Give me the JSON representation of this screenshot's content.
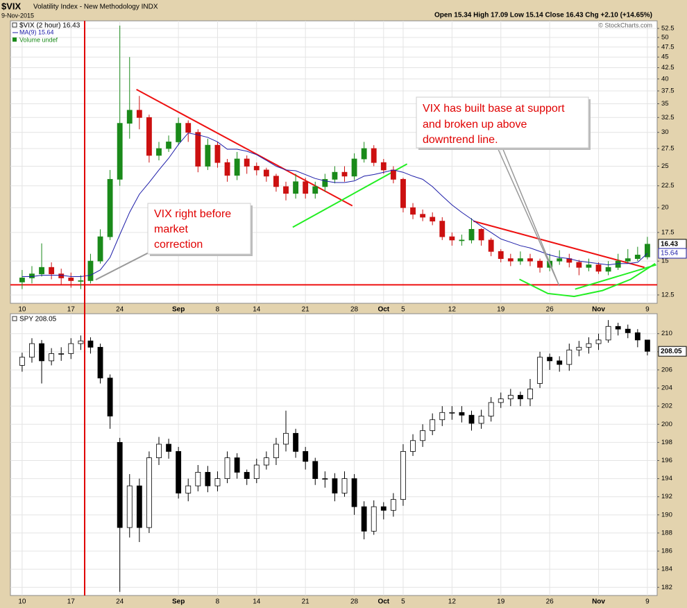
{
  "chart_data": [
    {
      "type": "candlestick",
      "title": "$VIX",
      "subtitle": "Volatility Index - New Methodology INDX",
      "date": "9-Nov-2015",
      "info": "Open 15.34 High 17.09 Low 15.14 Close 16.43 Chg +2.10 (+14.65%)",
      "credit": "© StockCharts.com",
      "log": true,
      "grid": true,
      "xlim": [
        -1.2,
        65
      ],
      "ylim": [
        11.95,
        54.7
      ],
      "xticks": [
        {
          "value": 0,
          "label": "10"
        },
        {
          "value": 5,
          "label": "17"
        },
        {
          "value": 10,
          "label": "24"
        },
        {
          "value": 16,
          "label": "Sep"
        },
        {
          "value": 20,
          "label": "8"
        },
        {
          "value": 24,
          "label": "14"
        },
        {
          "value": 29,
          "label": "21"
        },
        {
          "value": 34,
          "label": "28"
        },
        {
          "value": 37,
          "label": "Oct"
        },
        {
          "value": 39,
          "label": "5"
        },
        {
          "value": 44,
          "label": "12"
        },
        {
          "value": 49,
          "label": "19"
        },
        {
          "value": 54,
          "label": "26"
        },
        {
          "value": 59,
          "label": "Nov"
        },
        {
          "value": 64,
          "label": "9"
        }
      ],
      "yticks": [
        12.5,
        15.0,
        17.5,
        20.0,
        22.5,
        25.0,
        27.5,
        30.0,
        32.5,
        35.0,
        37.5,
        40.0,
        42.5,
        45.0,
        47.5,
        50.0,
        52.5
      ],
      "x": [
        0,
        1,
        2,
        3,
        4,
        5,
        6,
        7,
        8,
        9,
        10,
        11,
        12,
        13,
        14,
        15,
        16,
        17,
        18,
        19,
        20,
        21,
        22,
        23,
        24,
        25,
        26,
        27,
        28,
        29,
        30,
        31,
        32,
        33,
        34,
        35,
        36,
        37,
        38,
        39,
        40,
        41,
        42,
        43,
        44,
        45,
        46,
        47,
        48,
        49,
        50,
        51,
        52,
        53,
        54,
        55,
        56,
        57,
        58,
        59,
        60,
        61,
        62,
        63,
        64
      ],
      "series": [
        {
          "name": "$VIX (2 hour) 16.43",
          "up_color": "#1a8a1a",
          "down_color": "#cc1010",
          "open": [
            13.4,
            13.7,
            14.0,
            14.5,
            14.0,
            13.7,
            13.5,
            13.5,
            15.0,
            17.1,
            23.3,
            31.5,
            33.8,
            32.5,
            26.5,
            27.5,
            28.5,
            31.5,
            30.0,
            25.0,
            28.0,
            25.5,
            23.8,
            26.0,
            25.0,
            24.5,
            23.7,
            22.4,
            21.6,
            23.0,
            21.6,
            22.4,
            23.3,
            24.2,
            23.7,
            26.0,
            27.5,
            25.5,
            24.5,
            23.3,
            20.0,
            19.3,
            19.0,
            18.6,
            17.1,
            16.8,
            16.8,
            17.8,
            16.8,
            15.8,
            15.2,
            15.0,
            15.2,
            15.0,
            14.5,
            15.0,
            15.2,
            14.9,
            14.5,
            14.7,
            14.2,
            14.5,
            15.0,
            15.2,
            15.34
          ],
          "high": [
            14.3,
            14.6,
            16.5,
            14.9,
            14.4,
            14.1,
            13.9,
            15.6,
            17.8,
            24.5,
            53.3,
            45.0,
            36.5,
            33.0,
            28.5,
            29.5,
            32.5,
            32.0,
            30.5,
            29.0,
            28.5,
            26.0,
            27.0,
            26.5,
            25.5,
            24.8,
            24.0,
            23.0,
            24.0,
            23.5,
            23.0,
            24.0,
            25.0,
            25.0,
            26.8,
            28.5,
            28.0,
            26.0,
            25.0,
            23.5,
            20.5,
            19.8,
            19.5,
            19.0,
            17.5,
            17.3,
            18.9,
            17.9,
            17.0,
            16.0,
            15.6,
            15.8,
            15.6,
            15.2,
            15.6,
            15.9,
            15.6,
            15.1,
            15.2,
            14.9,
            15.0,
            15.6,
            16.0,
            16.2,
            17.09
          ],
          "low": [
            12.9,
            13.3,
            13.8,
            13.6,
            13.2,
            13.0,
            12.9,
            13.3,
            14.8,
            16.8,
            22.5,
            29.0,
            30.5,
            25.5,
            25.8,
            27.0,
            28.0,
            28.5,
            24.2,
            24.5,
            24.8,
            23.0,
            23.2,
            24.0,
            23.8,
            23.0,
            21.8,
            20.8,
            21.0,
            21.0,
            21.0,
            21.8,
            22.8,
            23.0,
            23.2,
            25.5,
            25.0,
            24.0,
            22.8,
            19.5,
            18.8,
            18.6,
            18.2,
            16.8,
            16.3,
            16.3,
            16.5,
            16.3,
            15.4,
            14.9,
            14.6,
            14.7,
            14.6,
            14.1,
            14.2,
            14.7,
            14.5,
            13.9,
            14.2,
            14.0,
            13.9,
            14.3,
            14.8,
            15.0,
            15.14
          ],
          "close": [
            13.7,
            14.0,
            14.5,
            14.0,
            13.7,
            13.5,
            13.5,
            15.0,
            17.1,
            23.3,
            31.5,
            33.8,
            32.5,
            26.5,
            27.5,
            28.5,
            31.5,
            30.0,
            25.0,
            28.0,
            25.5,
            23.8,
            26.0,
            25.0,
            24.5,
            23.7,
            22.4,
            21.6,
            23.0,
            21.6,
            22.4,
            23.3,
            24.2,
            23.7,
            26.0,
            27.5,
            25.5,
            24.5,
            23.3,
            20.0,
            19.3,
            19.0,
            18.6,
            17.1,
            16.8,
            16.8,
            17.8,
            16.8,
            15.8,
            15.2,
            15.0,
            15.2,
            15.0,
            14.5,
            15.0,
            15.2,
            14.9,
            14.5,
            14.7,
            14.2,
            14.5,
            15.0,
            15.2,
            15.5,
            16.43
          ]
        },
        {
          "name": "MA(9) 15.64",
          "type": "line",
          "color": "#1c1ca8",
          "values": [
            13.8,
            13.8,
            13.9,
            13.9,
            13.9,
            13.8,
            13.8,
            13.9,
            14.3,
            15.3,
            17.3,
            19.5,
            21.5,
            22.9,
            24.5,
            26.1,
            28.1,
            29.9,
            29.6,
            29.2,
            28.5,
            27.4,
            27.4,
            27.1,
            26.6,
            25.8,
            25.0,
            24.5,
            24.4,
            23.9,
            23.4,
            23.1,
            22.9,
            22.9,
            23.1,
            23.7,
            23.9,
            24.2,
            24.5,
            24.2,
            23.7,
            23.3,
            22.4,
            21.3,
            20.3,
            19.5,
            18.8,
            18.1,
            17.5,
            16.9,
            16.6,
            16.3,
            16.1,
            15.8,
            15.5,
            15.3,
            15.2,
            15.0,
            14.9,
            14.8,
            14.7,
            14.8,
            14.8,
            14.9,
            15.64
          ]
        }
      ],
      "legend_extra": "Volume undef",
      "marker_x": 6.4,
      "marker_color": "#e00000",
      "trendlines": [
        {
          "color": "#ee1010",
          "x": [
            11.7,
            33.8
          ],
          "y": [
            37.8,
            20.2
          ]
        },
        {
          "color": "#ee1010",
          "x": [
            46.2,
            63.7
          ],
          "y": [
            18.6,
            14.5
          ]
        },
        {
          "color": "#ee1010",
          "x": [
            -1.2,
            65
          ],
          "y": [
            13.2,
            13.2
          ]
        },
        {
          "color": "#22ee22",
          "x": [
            27.7,
            39.4
          ],
          "y": [
            18.0,
            25.3
          ]
        },
        {
          "color": "#22ee22",
          "x": [
            50.9,
            53.8,
            56.5,
            59.4,
            62.3,
            64.8
          ],
          "y": [
            13.6,
            12.6,
            12.4,
            12.8,
            13.6,
            14.8
          ]
        },
        {
          "color": "#22ee22",
          "x": [
            56.6,
            64.9
          ],
          "y": [
            12.9,
            14.7
          ]
        }
      ],
      "annotations": [
        {
          "lines": [
            "VIX right before",
            "market",
            "correction"
          ]
        },
        {
          "lines": [
            "VIX has built base at support",
            "and broken up above",
            "downtrend line."
          ]
        }
      ]
    },
    {
      "type": "candlestick",
      "grid": true,
      "xlim": [
        -1.2,
        65
      ],
      "ylim": [
        181.1,
        212.2
      ],
      "xticks": [
        {
          "value": 0,
          "label": "10"
        },
        {
          "value": 5,
          "label": "17"
        },
        {
          "value": 10,
          "label": "24"
        },
        {
          "value": 16,
          "label": "Sep"
        },
        {
          "value": 20,
          "label": "8"
        },
        {
          "value": 24,
          "label": "14"
        },
        {
          "value": 29,
          "label": "21"
        },
        {
          "value": 34,
          "label": "28"
        },
        {
          "value": 37,
          "label": "Oct"
        },
        {
          "value": 39,
          "label": "5"
        },
        {
          "value": 44,
          "label": "12"
        },
        {
          "value": 49,
          "label": "19"
        },
        {
          "value": 54,
          "label": "26"
        },
        {
          "value": 59,
          "label": "Nov"
        },
        {
          "value": 64,
          "label": "9"
        }
      ],
      "yticks": [
        182,
        184,
        186,
        188,
        190,
        192,
        194,
        196,
        198,
        200,
        202,
        204,
        206,
        208,
        210
      ],
      "x": [
        0,
        1,
        2,
        3,
        4,
        5,
        6,
        7,
        8,
        9,
        10,
        11,
        12,
        13,
        14,
        15,
        16,
        17,
        18,
        19,
        20,
        21,
        22,
        23,
        24,
        25,
        26,
        27,
        28,
        29,
        30,
        31,
        32,
        33,
        34,
        35,
        36,
        37,
        38,
        39,
        40,
        41,
        42,
        43,
        44,
        45,
        46,
        47,
        48,
        49,
        50,
        51,
        52,
        53,
        54,
        55,
        56,
        57,
        58,
        59,
        60,
        61,
        62,
        63,
        64
      ],
      "series": [
        {
          "name": "SPY 208.05",
          "up_color": "#ffffff",
          "down_color": "#000000",
          "open": [
            206.5,
            207.4,
            208.9,
            207.0,
            207.8,
            207.8,
            208.9,
            209.2,
            208.5,
            205.1,
            198.0,
            188.6,
            193.2,
            188.6,
            196.3,
            197.8,
            197.0,
            192.4,
            193.2,
            194.7,
            193.2,
            194.0,
            196.3,
            194.7,
            194.0,
            195.5,
            196.3,
            197.8,
            199.0,
            197.0,
            195.9,
            194.0,
            194.0,
            192.4,
            194.0,
            190.9,
            188.2,
            190.9,
            190.5,
            191.7,
            197.0,
            198.2,
            199.3,
            200.5,
            201.3,
            201.3,
            201.0,
            200.1,
            200.9,
            202.4,
            202.8,
            203.2,
            202.8,
            204.5,
            207.4,
            207.0,
            206.6,
            208.2,
            208.5,
            208.9,
            209.3,
            210.8,
            210.5,
            210.1,
            209.3
          ],
          "high": [
            207.9,
            209.5,
            209.3,
            208.4,
            208.5,
            209.5,
            209.8,
            209.6,
            208.9,
            205.5,
            198.5,
            194.5,
            194.0,
            197.0,
            198.6,
            198.4,
            197.5,
            194.0,
            195.5,
            195.4,
            194.8,
            197.0,
            196.8,
            195.0,
            196.2,
            197.0,
            198.5,
            201.5,
            199.5,
            197.5,
            196.3,
            194.8,
            194.6,
            194.8,
            194.5,
            191.5,
            191.6,
            191.4,
            192.4,
            197.8,
            198.9,
            200.0,
            201.2,
            202.0,
            202.0,
            202.0,
            201.5,
            201.6,
            203.0,
            203.5,
            203.9,
            203.6,
            205.0,
            208.0,
            207.8,
            207.5,
            208.9,
            209.2,
            209.6,
            210.0,
            211.5,
            211.2,
            211.0,
            210.5,
            209.3
          ],
          "low": [
            205.8,
            206.8,
            204.5,
            206.5,
            207.0,
            207.2,
            208.2,
            207.8,
            204.5,
            199.5,
            181.5,
            187.5,
            187.0,
            188.0,
            195.5,
            196.2,
            191.8,
            191.5,
            192.6,
            192.5,
            192.6,
            193.5,
            194.0,
            193.3,
            193.5,
            195.0,
            195.5,
            197.0,
            196.3,
            195.0,
            193.3,
            193.0,
            191.5,
            192.0,
            190.0,
            187.3,
            187.8,
            189.5,
            189.8,
            191.0,
            196.5,
            197.5,
            198.8,
            199.8,
            200.5,
            200.2,
            199.3,
            199.5,
            200.3,
            201.8,
            202.0,
            202.0,
            202.0,
            204.0,
            206.0,
            205.8,
            205.9,
            207.5,
            207.8,
            208.2,
            209.0,
            209.8,
            209.5,
            208.5,
            207.6
          ],
          "close": [
            207.4,
            208.9,
            207.0,
            207.8,
            207.8,
            208.9,
            209.2,
            208.5,
            205.1,
            200.9,
            188.6,
            193.2,
            188.6,
            196.3,
            197.8,
            197.0,
            192.4,
            193.2,
            194.7,
            193.2,
            194.0,
            196.3,
            194.7,
            194.0,
            195.5,
            196.3,
            197.8,
            199.0,
            197.0,
            195.9,
            194.0,
            194.0,
            192.4,
            194.0,
            190.9,
            188.2,
            190.9,
            190.5,
            191.7,
            197.0,
            198.2,
            199.3,
            200.5,
            201.3,
            201.3,
            201.0,
            200.1,
            200.9,
            202.4,
            202.8,
            203.2,
            202.8,
            203.9,
            207.4,
            207.0,
            206.6,
            208.2,
            208.5,
            208.9,
            209.3,
            210.8,
            210.5,
            210.1,
            209.3,
            208.05
          ]
        }
      ]
    }
  ]
}
